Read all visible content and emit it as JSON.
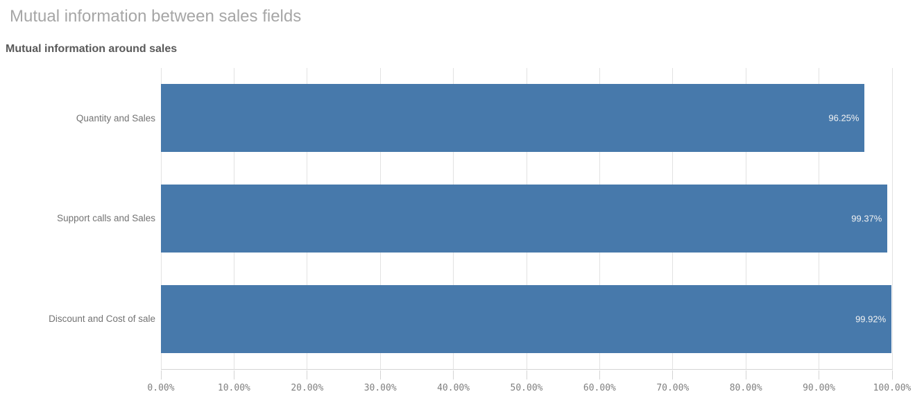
{
  "page": {
    "title": "Mutual information between sales fields"
  },
  "chart": {
    "title": "Mutual information around sales"
  },
  "chart_data": {
    "type": "bar",
    "orientation": "horizontal",
    "title": "Mutual information around sales",
    "categories": [
      "Quantity and Sales",
      "Support calls and Sales",
      "Discount and Cost of sale"
    ],
    "values": [
      96.25,
      99.37,
      99.92
    ],
    "value_labels": [
      "96.25%",
      "99.37%",
      "99.92%"
    ],
    "xlabel": "",
    "ylabel": "",
    "xlim": [
      0,
      100
    ],
    "grid": true,
    "legend": "none",
    "x_axis": {
      "min": 0,
      "max": 100,
      "tick_step": 10,
      "tick_labels": [
        "0.00%",
        "10.00%",
        "20.00%",
        "30.00%",
        "40.00%",
        "50.00%",
        "60.00%",
        "70.00%",
        "80.00%",
        "90.00%",
        "100.00%"
      ]
    },
    "colors": {
      "bar": "#4779ab",
      "value_label": "#f2f2f2",
      "gridline": "#e2e2e2",
      "axis_line": "#d4d4d4",
      "tick_label": "#7f7f7f",
      "category_label": "#737373",
      "sheet_title": "#a6a6a6",
      "chart_title": "#595959"
    }
  }
}
